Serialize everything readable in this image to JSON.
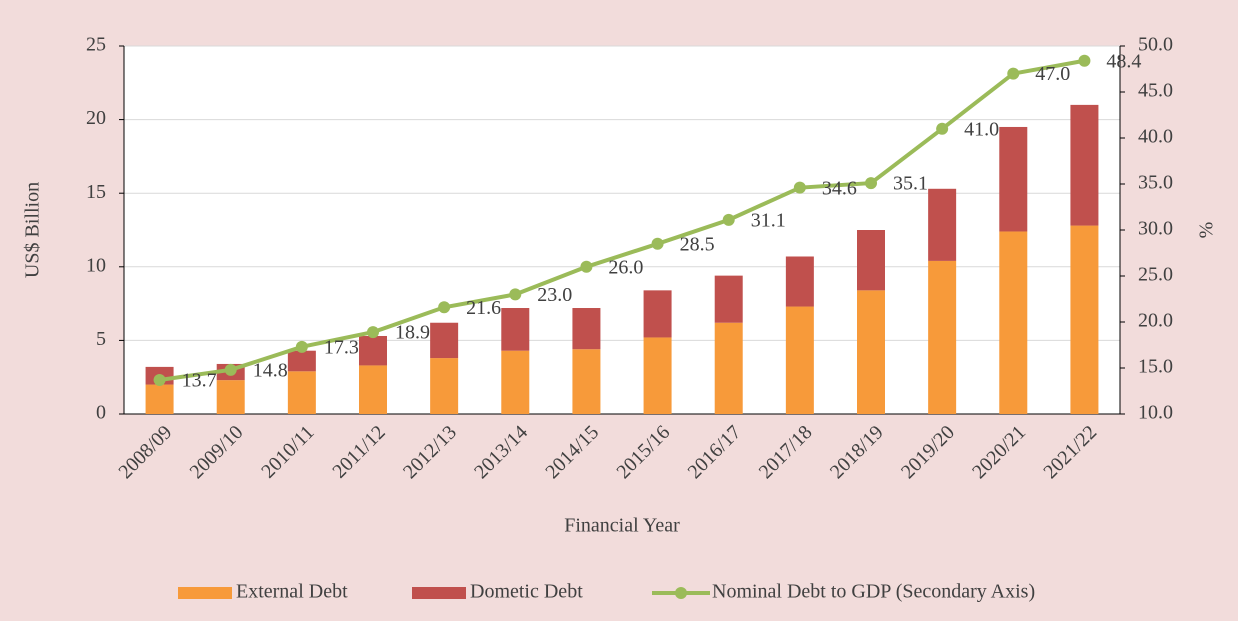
{
  "chart_data": {
    "type": "bar_line",
    "y_label": "US$ Billion",
    "y2_label": "%",
    "x_label": "Financial Year",
    "categories": [
      "2008/09",
      "2009/10",
      "2010/11",
      "2011/12",
      "2012/13",
      "2013/14",
      "2014/15",
      "2015/16",
      "2016/17",
      "2017/18",
      "2018/19",
      "2019/20",
      "2020/21",
      "2021/22"
    ],
    "series": [
      {
        "name": "External Debt",
        "type": "bar",
        "color": "#f79a3a",
        "values": [
          2.0,
          2.3,
          2.9,
          3.3,
          3.8,
          4.3,
          4.4,
          5.2,
          6.2,
          7.3,
          8.4,
          10.4,
          12.4,
          12.8
        ]
      },
      {
        "name": "Dometic Debt",
        "type": "bar",
        "color": "#c0504d",
        "values": [
          1.2,
          1.1,
          1.4,
          2.0,
          2.4,
          2.9,
          2.8,
          3.2,
          3.2,
          3.4,
          4.1,
          4.9,
          7.1,
          8.2
        ]
      },
      {
        "name": "Nominal Debt to GDP (Secondary Axis)",
        "type": "line",
        "axis": "y2",
        "color": "#9bbb59",
        "values": [
          13.7,
          14.8,
          17.3,
          18.9,
          21.6,
          23.0,
          26.0,
          28.5,
          31.1,
          34.6,
          35.1,
          41.0,
          47.0,
          48.4
        ],
        "value_labels": [
          "13.7",
          "14.8",
          "17.3",
          "18.9",
          "21.6",
          "23.0",
          "26.0",
          "28.5",
          "31.1",
          "34.6",
          "35.1",
          "41.0",
          "47.0",
          "48.4"
        ]
      }
    ],
    "ylim": [
      0,
      25
    ],
    "yticks": [
      0,
      5,
      10,
      15,
      20,
      25
    ],
    "y2lim": [
      10,
      50
    ],
    "y2ticks": [
      {
        "value": 10,
        "label": "10.0"
      },
      {
        "value": 15,
        "label": "15.0"
      },
      {
        "value": 20,
        "label": "20.0"
      },
      {
        "value": 25,
        "label": "25.0"
      },
      {
        "value": 30,
        "label": "30.0"
      },
      {
        "value": 35,
        "label": "35.0"
      },
      {
        "value": 40,
        "label": "40.0"
      },
      {
        "value": 45,
        "label": "45.0"
      },
      {
        "value": 50,
        "label": "50.0"
      }
    ],
    "grid": true,
    "legend": "bottom"
  }
}
